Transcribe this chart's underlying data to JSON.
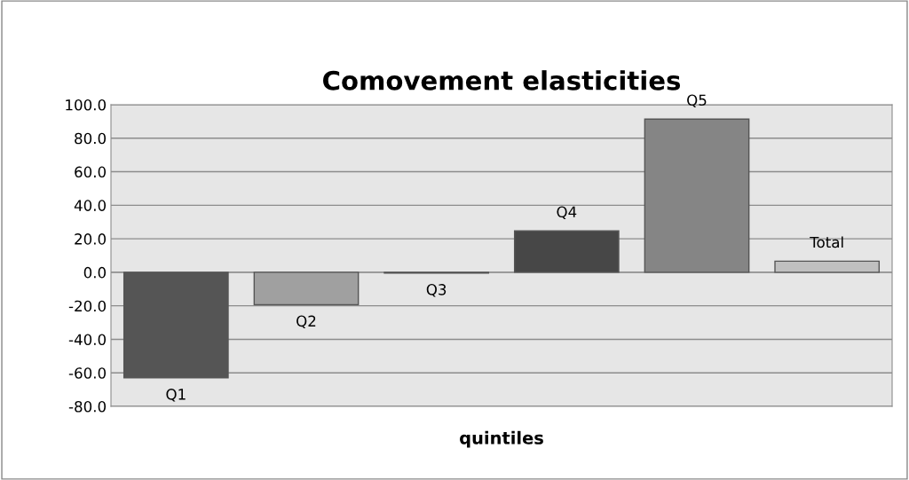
{
  "chart_data": {
    "type": "bar",
    "title": "Comovement elasticities",
    "xlabel": "quintiles",
    "categories": [
      "Q1",
      "Q2",
      "Q3",
      "Q4",
      "Q5",
      "Total"
    ],
    "values": [
      -63.0,
      -19.3,
      -0.5,
      24.7,
      91.4,
      6.6
    ],
    "colors": [
      "#555555",
      "#a0a0a0",
      "#3a3a3a",
      "#474747",
      "#858585",
      "#c0c0c0"
    ],
    "ylim": [
      -80,
      100
    ],
    "yticks": [
      {
        "value": -80,
        "label": "-80.0"
      },
      {
        "value": -60,
        "label": "-60.0"
      },
      {
        "value": -40,
        "label": "-40.0"
      },
      {
        "value": -20,
        "label": "-20.0"
      },
      {
        "value": 0,
        "label": "0.0"
      },
      {
        "value": 20,
        "label": "20.0"
      },
      {
        "value": 40,
        "label": "40.0"
      },
      {
        "value": 60,
        "label": "60.0"
      },
      {
        "value": 80,
        "label": "80.0"
      },
      {
        "value": 100,
        "label": "100.0"
      }
    ],
    "grid": "y",
    "tick_labels": "y"
  }
}
